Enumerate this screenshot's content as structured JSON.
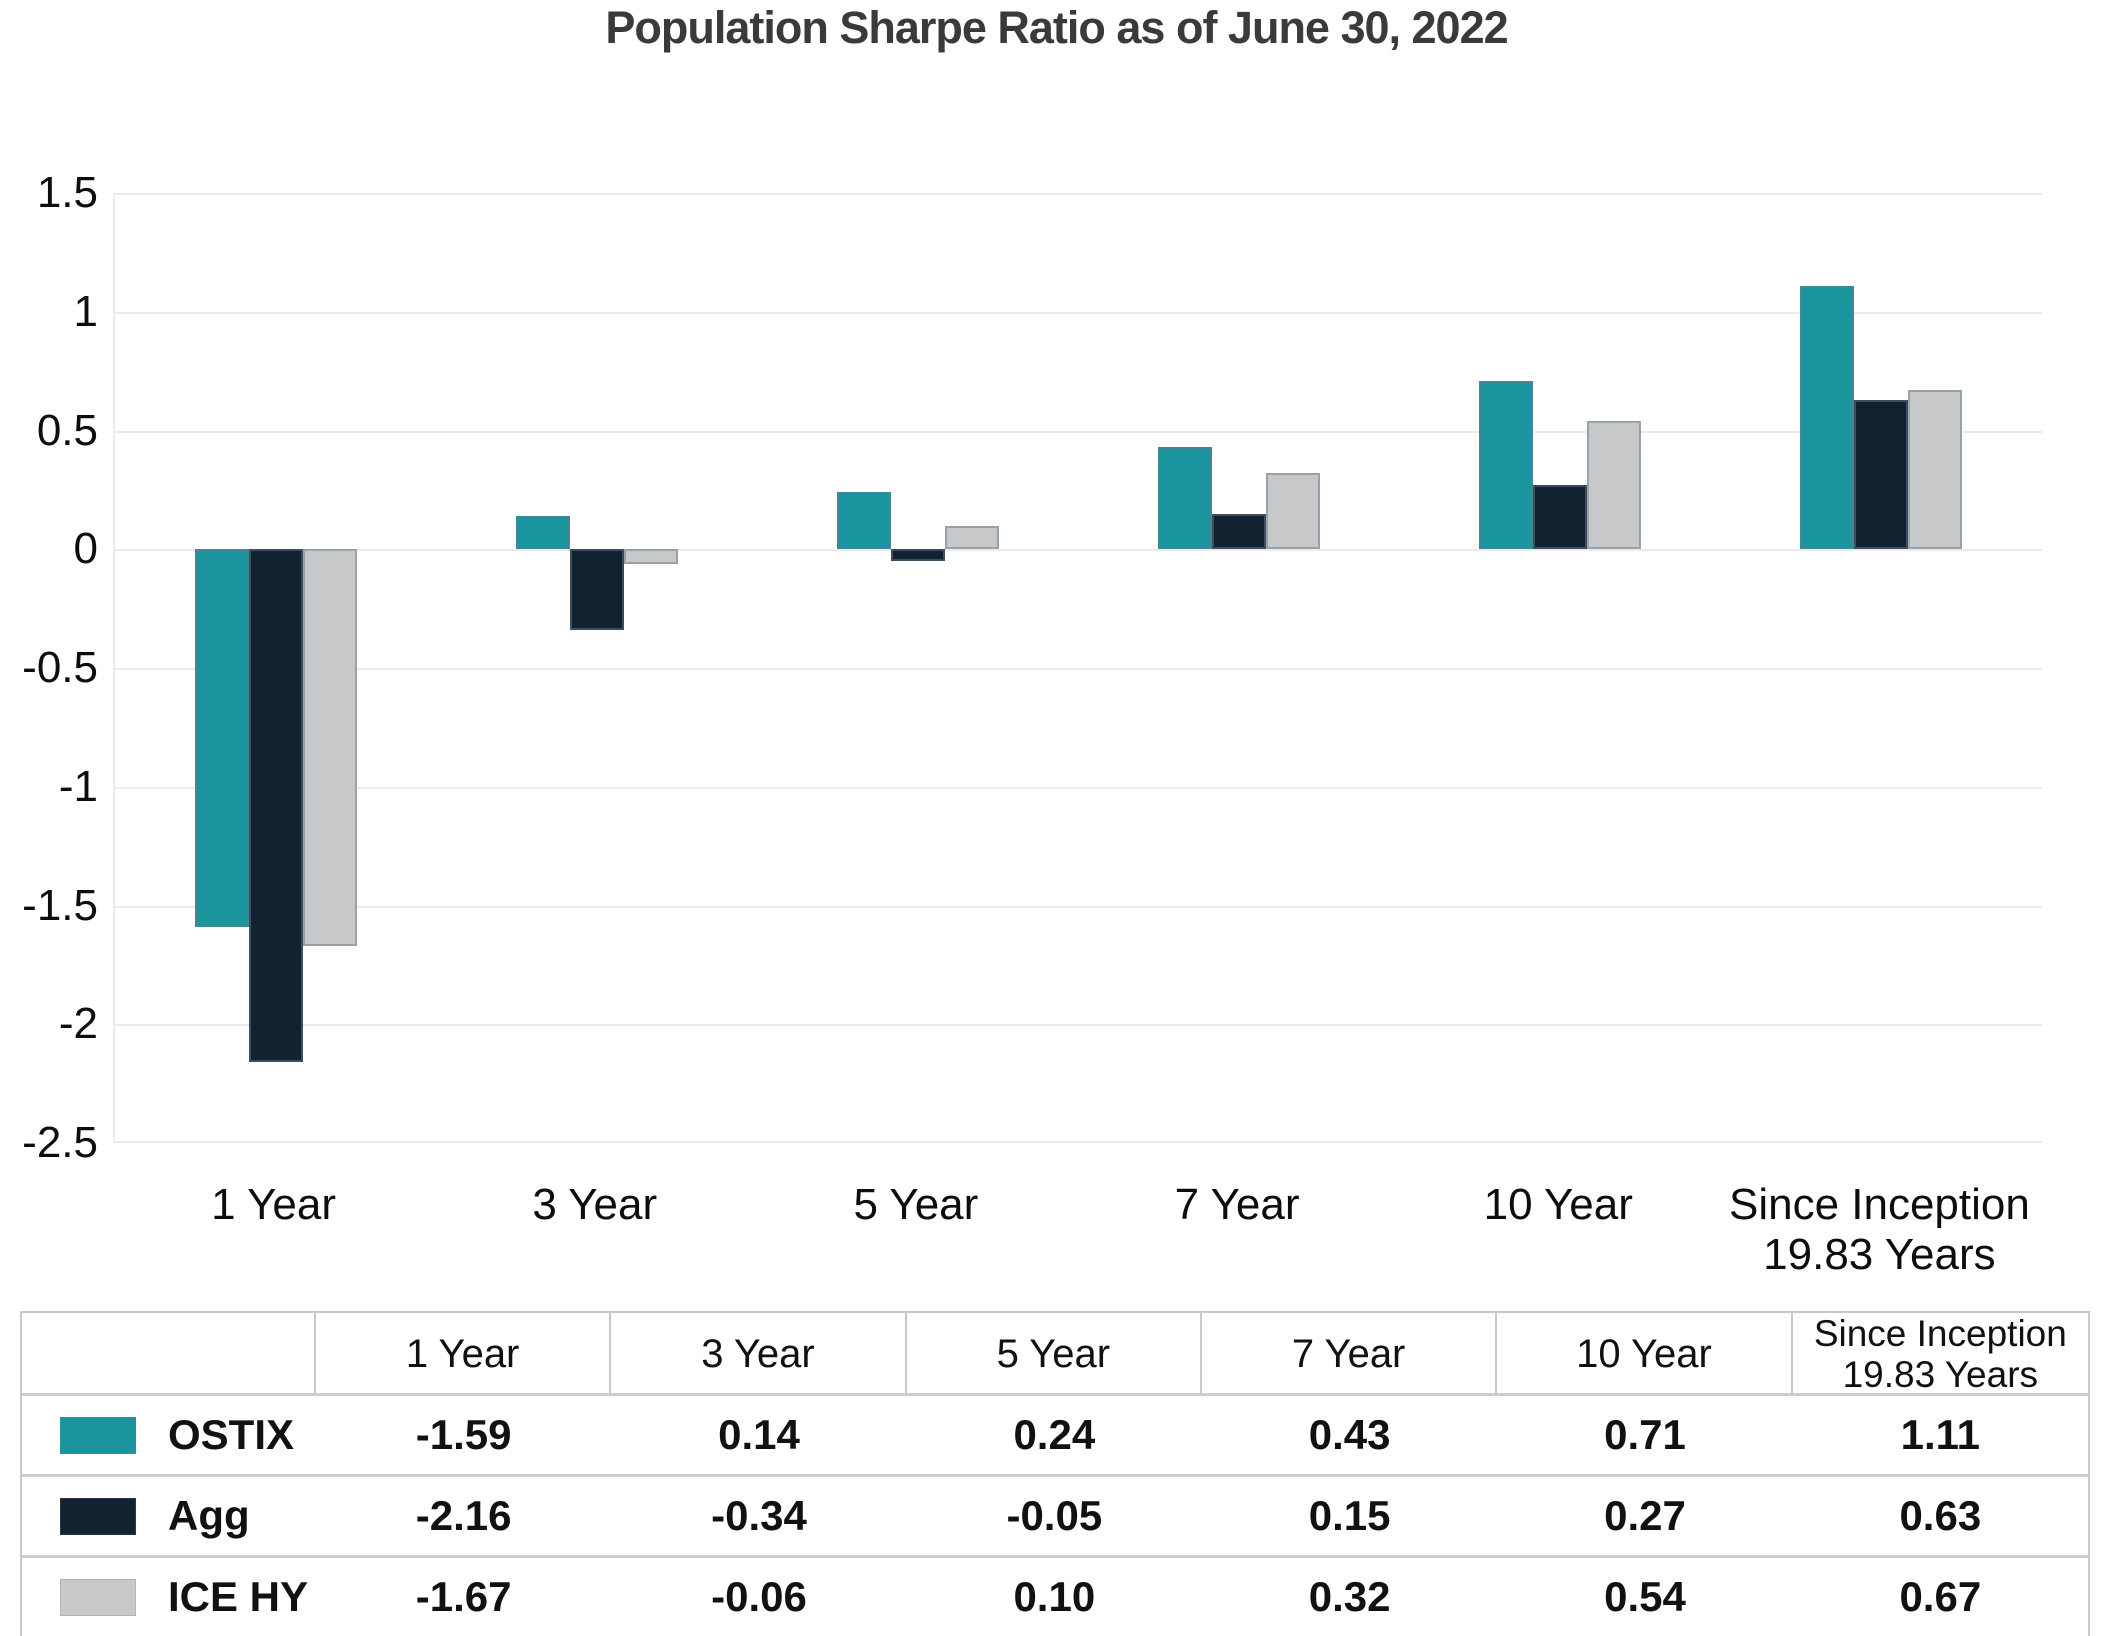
{
  "title": "Population Sharpe Ratio as of June 30, 2022",
  "chart_data": {
    "type": "bar",
    "title": "Population Sharpe Ratio as of June 30, 2022",
    "categories": [
      "1 Year",
      "3 Year",
      "5 Year",
      "7 Year",
      "10 Year",
      "Since Inception\n19.83 Years"
    ],
    "series": [
      {
        "name": "OSTIX",
        "color": "#1a949d",
        "values": [
          -1.59,
          0.14,
          0.24,
          0.43,
          0.71,
          1.11
        ]
      },
      {
        "name": "Agg",
        "color": "#122230",
        "values": [
          -2.16,
          -0.34,
          -0.05,
          0.15,
          0.27,
          0.63
        ]
      },
      {
        "name": "ICE HY",
        "color": "#c7c8ca",
        "values": [
          -1.67,
          -0.06,
          0.1,
          0.32,
          0.54,
          0.67
        ]
      }
    ],
    "xlabel": "",
    "ylabel": "",
    "ylim": [
      -2.5,
      1.5
    ],
    "ytick_step": 0.5,
    "ytick_labels": [
      "1.5",
      "1",
      "0.5",
      "0",
      "-0.5",
      "-1",
      "-1.5",
      "-2",
      "-2.5"
    ],
    "grid": true,
    "legend_position": "table-below-chart"
  },
  "table": {
    "corner_header": "",
    "col_headers": [
      "1 Year",
      "3 Year",
      "5 Year",
      "7 Year",
      "10 Year",
      "Since Inception\n19.83 Years"
    ],
    "rows": [
      {
        "label": "OSTIX",
        "swatch_color": "#1a949d",
        "values": [
          "-1.59",
          "0.14",
          "0.24",
          "0.43",
          "0.71",
          "1.11"
        ]
      },
      {
        "label": "Agg",
        "swatch_color": "#122230",
        "values": [
          "-2.16",
          "-0.34",
          "-0.05",
          "0.15",
          "0.27",
          "0.63"
        ]
      },
      {
        "label": "ICE HY",
        "swatch_color": "#c7c8ca",
        "values": [
          "-1.67",
          "-0.06",
          "0.10",
          "0.32",
          "0.54",
          "0.67"
        ]
      }
    ]
  },
  "colors": {
    "ostix": "#1a949d",
    "agg": "#122230",
    "ice_hy": "#c7c8ca",
    "gridline": "#ebebeb",
    "table_border": "#c9c9c9",
    "title_text": "#3a3a3a"
  }
}
